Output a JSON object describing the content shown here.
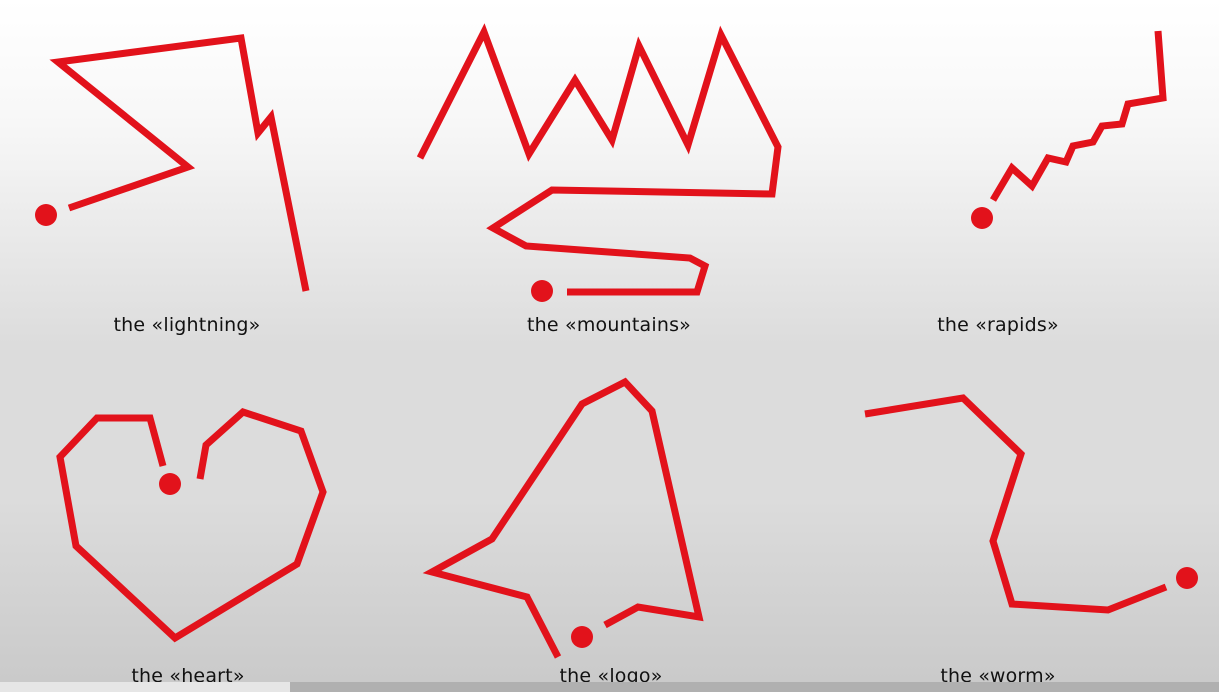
{
  "figures": [
    {
      "id": "lightning",
      "caption": "the «lightning»"
    },
    {
      "id": "mountains",
      "caption": "the «mountains»"
    },
    {
      "id": "rapids",
      "caption": "the «rapids»"
    },
    {
      "id": "heart",
      "caption": "the «heart»"
    },
    {
      "id": "logo",
      "caption": "the «logo»"
    },
    {
      "id": "worm",
      "caption": "the «worm»"
    }
  ],
  "colors": {
    "stroke": "#e2121b",
    "caption_text": "#111111"
  }
}
